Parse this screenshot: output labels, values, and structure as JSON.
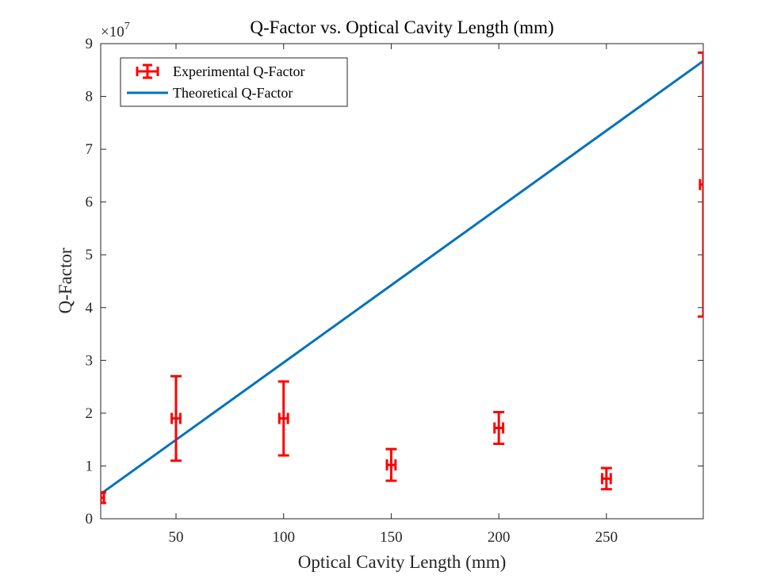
{
  "chart_data": {
    "type": "scatter",
    "title": "Q-Factor vs. Optical Cavity Length (mm)",
    "xlabel": "Optical Cavity Length (mm)",
    "ylabel": "Q-Factor",
    "y_exponent_label": "×10",
    "y_exponent_power": "7",
    "xlim": [
      15,
      295
    ],
    "ylim": [
      0,
      90000000
    ],
    "x_ticks": [
      50,
      100,
      150,
      200,
      250
    ],
    "x_tick_labels": [
      "50",
      "100",
      "150",
      "200",
      "250"
    ],
    "y_ticks": [
      0,
      10000000,
      20000000,
      30000000,
      40000000,
      50000000,
      60000000,
      70000000,
      80000000,
      90000000
    ],
    "y_tick_labels": [
      "0",
      "1",
      "2",
      "3",
      "4",
      "5",
      "6",
      "7",
      "8",
      "9"
    ],
    "grid": false,
    "legend_position": "top-left",
    "series": [
      {
        "name": "Experimental Q-Factor",
        "kind": "errorbar",
        "color": "#ff0000",
        "points": [
          {
            "x": 15,
            "y": 4000000,
            "yerr": 1000000,
            "xerr": 1.5
          },
          {
            "x": 50,
            "y": 19000000,
            "yerr": 8000000,
            "xerr": 2
          },
          {
            "x": 100,
            "y": 19000000,
            "yerr": 7000000,
            "xerr": 2
          },
          {
            "x": 150,
            "y": 10200000,
            "yerr": 3000000,
            "xerr": 2
          },
          {
            "x": 200,
            "y": 17200000,
            "yerr": 3000000,
            "xerr": 2
          },
          {
            "x": 250,
            "y": 7600000,
            "yerr": 2000000,
            "xerr": 2
          },
          {
            "x": 295,
            "y": 63300000,
            "yerr": 25000000,
            "xerr": 1.5
          }
        ]
      },
      {
        "name": "Theoretical Q-Factor",
        "kind": "line",
        "color": "#0072bd",
        "points": [
          {
            "x": 15,
            "y": 4700000
          },
          {
            "x": 295,
            "y": 86700000
          }
        ]
      }
    ]
  }
}
